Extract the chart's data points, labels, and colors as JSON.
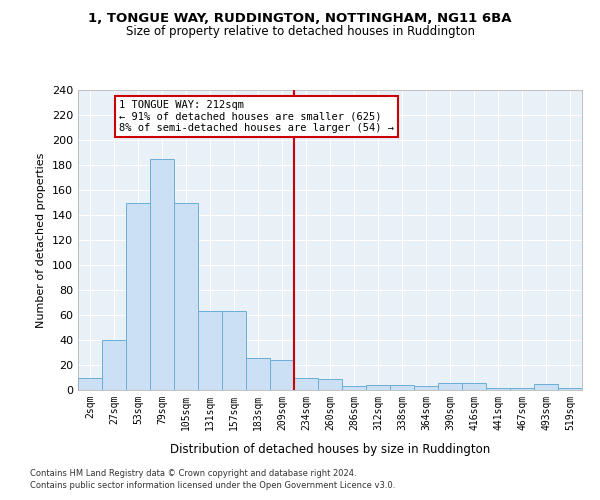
{
  "title1": "1, TONGUE WAY, RUDDINGTON, NOTTINGHAM, NG11 6BA",
  "title2": "Size of property relative to detached houses in Ruddington",
  "xlabel": "Distribution of detached houses by size in Ruddington",
  "ylabel": "Number of detached properties",
  "bar_labels": [
    "2sqm",
    "27sqm",
    "53sqm",
    "79sqm",
    "105sqm",
    "131sqm",
    "157sqm",
    "183sqm",
    "209sqm",
    "234sqm",
    "260sqm",
    "286sqm",
    "312sqm",
    "338sqm",
    "364sqm",
    "390sqm",
    "416sqm",
    "441sqm",
    "467sqm",
    "493sqm",
    "519sqm"
  ],
  "bar_values": [
    10,
    40,
    150,
    185,
    150,
    63,
    63,
    26,
    24,
    10,
    9,
    3,
    4,
    4,
    3,
    6,
    6,
    2,
    2,
    5,
    2
  ],
  "bar_color": "#cce0f5",
  "bar_edge_color": "#6aaed6",
  "vline_x": 8.5,
  "vline_color": "#cc0000",
  "annotation_text": "1 TONGUE WAY: 212sqm\n← 91% of detached houses are smaller (625)\n8% of semi-detached houses are larger (54) →",
  "annotation_box_color": "#cc0000",
  "ylim": [
    0,
    240
  ],
  "yticks": [
    0,
    20,
    40,
    60,
    80,
    100,
    120,
    140,
    160,
    180,
    200,
    220,
    240
  ],
  "background_color": "#e8f0f8",
  "grid_color": "#ffffff",
  "footnote1": "Contains HM Land Registry data © Crown copyright and database right 2024.",
  "footnote2": "Contains public sector information licensed under the Open Government Licence v3.0."
}
